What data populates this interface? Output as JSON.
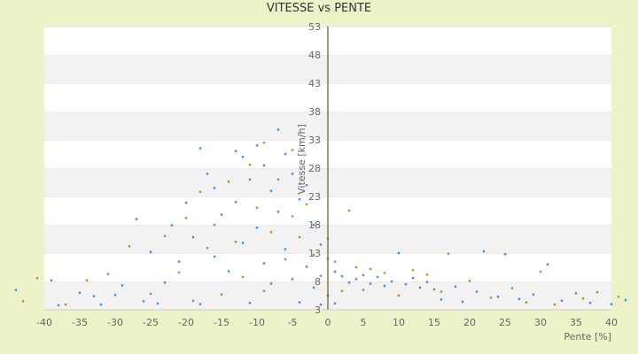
{
  "chart_data": {
    "type": "scatter",
    "title": "VITESSE vs PENTE",
    "xlabel": "Pente [%]",
    "ylabel": "Vitesse [km/h]",
    "xlim": [
      -40,
      40
    ],
    "ylim": [
      3,
      53
    ],
    "xticks": [
      -40,
      -35,
      -30,
      -25,
      -20,
      -15,
      -10,
      -5,
      0,
      5,
      10,
      15,
      20,
      25,
      30,
      35,
      40
    ],
    "yticks": [
      3,
      8,
      13,
      18,
      23,
      28,
      33,
      38,
      43,
      48,
      53
    ],
    "grid": "horizontal bands",
    "legend": "none",
    "colors": {
      "series_a": "#3d8fd6",
      "series_b": "#9a9a3a",
      "band": "#f2f2f2",
      "axis": "#6a6a2a"
    },
    "series": [
      {
        "values": [
          [
            -44,
            6.5
          ],
          [
            -39,
            8.2
          ],
          [
            -38,
            3.8
          ],
          [
            -35,
            6.0
          ],
          [
            -33,
            5.4
          ],
          [
            -32,
            3.9
          ],
          [
            -30,
            5.6
          ],
          [
            -29,
            7.3
          ],
          [
            -27,
            19.0
          ],
          [
            -26,
            4.5
          ],
          [
            -25,
            13.2
          ],
          [
            -24,
            4.1
          ],
          [
            -23,
            7.8
          ],
          [
            -22,
            17.9
          ],
          [
            -21,
            11.5
          ],
          [
            -20,
            21.9
          ],
          [
            -19,
            15.8
          ],
          [
            -18,
            31.5
          ],
          [
            -18,
            4.0
          ],
          [
            -17,
            27.0
          ],
          [
            -16,
            24.5
          ],
          [
            -16,
            12.4
          ],
          [
            -15,
            19.8
          ],
          [
            -14,
            9.8
          ],
          [
            -13,
            31.0
          ],
          [
            -13,
            22.0
          ],
          [
            -12,
            30.0
          ],
          [
            -12,
            14.8
          ],
          [
            -11,
            26.0
          ],
          [
            -11,
            4.2
          ],
          [
            -10,
            32.0
          ],
          [
            -10,
            17.5
          ],
          [
            -9,
            28.5
          ],
          [
            -9,
            11.2
          ],
          [
            -8,
            24.0
          ],
          [
            -8,
            7.6
          ],
          [
            -7,
            34.8
          ],
          [
            -7,
            20.3
          ],
          [
            -6,
            30.5
          ],
          [
            -6,
            13.7
          ],
          [
            -5,
            27.0
          ],
          [
            -5,
            8.4
          ],
          [
            -4,
            22.5
          ],
          [
            -4,
            4.3
          ],
          [
            -3,
            25.0
          ],
          [
            -3,
            10.6
          ],
          [
            -2,
            18.0
          ],
          [
            -2,
            6.9
          ],
          [
            -1,
            14.5
          ],
          [
            -1,
            3.9
          ],
          [
            0,
            12.0
          ],
          [
            0,
            5.5
          ],
          [
            1,
            9.7
          ],
          [
            1,
            4.1
          ],
          [
            2,
            8.9
          ],
          [
            3,
            7.8
          ],
          [
            4,
            8.4
          ],
          [
            5,
            9.1
          ],
          [
            6,
            7.6
          ],
          [
            7,
            8.8
          ],
          [
            8,
            7.2
          ],
          [
            9,
            8.0
          ],
          [
            10,
            13.0
          ],
          [
            11,
            7.5
          ],
          [
            12,
            8.6
          ],
          [
            13,
            6.9
          ],
          [
            14,
            7.9
          ],
          [
            15,
            6.6
          ],
          [
            16,
            4.8
          ],
          [
            18,
            7.1
          ],
          [
            19,
            4.4
          ],
          [
            21,
            6.2
          ],
          [
            22,
            13.3
          ],
          [
            24,
            5.3
          ],
          [
            25,
            12.8
          ],
          [
            27,
            4.9
          ],
          [
            29,
            5.7
          ],
          [
            31,
            11.0
          ],
          [
            33,
            4.6
          ],
          [
            35,
            5.9
          ],
          [
            37,
            4.2
          ],
          [
            40,
            4.0
          ],
          [
            42,
            4.7
          ]
        ]
      },
      {
        "values": [
          [
            -43,
            4.5
          ],
          [
            -41,
            8.6
          ],
          [
            -37,
            3.9
          ],
          [
            -34,
            8.2
          ],
          [
            -31,
            9.3
          ],
          [
            -28,
            14.2
          ],
          [
            -25,
            5.8
          ],
          [
            -23,
            16.0
          ],
          [
            -21,
            9.6
          ],
          [
            -20,
            19.2
          ],
          [
            -19,
            4.6
          ],
          [
            -18,
            23.8
          ],
          [
            -17,
            13.9
          ],
          [
            -16,
            18.0
          ],
          [
            -15,
            5.7
          ],
          [
            -14,
            25.6
          ],
          [
            -13,
            15.0
          ],
          [
            -12,
            8.8
          ],
          [
            -11,
            28.6
          ],
          [
            -10,
            21.0
          ],
          [
            -9,
            32.5
          ],
          [
            -9,
            6.3
          ],
          [
            -8,
            16.7
          ],
          [
            -7,
            26.0
          ],
          [
            -6,
            11.9
          ],
          [
            -5,
            31.2
          ],
          [
            -5,
            19.5
          ],
          [
            -4,
            15.8
          ],
          [
            -3,
            21.6
          ],
          [
            -2,
            12.7
          ],
          [
            -1,
            9.0
          ],
          [
            0,
            15.6
          ],
          [
            1,
            11.5
          ],
          [
            2,
            6.3
          ],
          [
            3,
            20.5
          ],
          [
            4,
            10.5
          ],
          [
            5,
            6.5
          ],
          [
            6,
            10.2
          ],
          [
            8,
            9.5
          ],
          [
            10,
            5.5
          ],
          [
            12,
            10.0
          ],
          [
            14,
            9.2
          ],
          [
            16,
            6.2
          ],
          [
            17,
            12.9
          ],
          [
            20,
            8.1
          ],
          [
            23,
            5.1
          ],
          [
            26,
            6.8
          ],
          [
            28,
            4.3
          ],
          [
            30,
            9.7
          ],
          [
            32,
            3.9
          ],
          [
            36,
            5.0
          ],
          [
            38,
            6.1
          ],
          [
            41,
            5.3
          ]
        ]
      }
    ]
  }
}
